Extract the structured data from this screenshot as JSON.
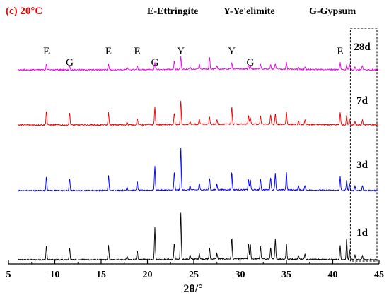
{
  "chart_data": {
    "type": "line",
    "panel_label": "(c) 20°C",
    "legend_items": [
      {
        "abbr": "E",
        "text": "E-Ettringite"
      },
      {
        "abbr": "Y",
        "text": "Y-Ye'elimite"
      },
      {
        "abbr": "G",
        "text": "G-Gypsum"
      }
    ],
    "xlabel": "2θ/°",
    "ylabel": "",
    "xlim": [
      5,
      45
    ],
    "xticks": [
      5,
      10,
      15,
      20,
      25,
      30,
      35,
      40,
      45
    ],
    "y_axis_visible": false,
    "grid": false,
    "highlight_box_xrange": [
      41.9,
      45
    ],
    "colors": {
      "1d": "#000000",
      "3d": "#0000ee",
      "7d": "#ee0000",
      "28d": "#ee00ee",
      "panel_label": "#ee0000"
    },
    "series": [
      {
        "name": "1d",
        "peaks": [
          {
            "x": 9.1,
            "h": 20
          },
          {
            "x": 11.6,
            "h": 17
          },
          {
            "x": 15.8,
            "h": 20
          },
          {
            "x": 17.8,
            "h": 5
          },
          {
            "x": 18.9,
            "h": 12
          },
          {
            "x": 20.8,
            "h": 45
          },
          {
            "x": 22.9,
            "h": 23
          },
          {
            "x": 23.6,
            "h": 65
          },
          {
            "x": 24.6,
            "h": 6
          },
          {
            "x": 25.6,
            "h": 8
          },
          {
            "x": 26.7,
            "h": 16
          },
          {
            "x": 27.5,
            "h": 8
          },
          {
            "x": 29.1,
            "h": 30
          },
          {
            "x": 30.9,
            "h": 22
          },
          {
            "x": 31.1,
            "h": 22
          },
          {
            "x": 32.2,
            "h": 18
          },
          {
            "x": 33.3,
            "h": 16
          },
          {
            "x": 33.8,
            "h": 28
          },
          {
            "x": 35.0,
            "h": 22
          },
          {
            "x": 36.3,
            "h": 6
          },
          {
            "x": 37.0,
            "h": 8
          },
          {
            "x": 40.8,
            "h": 20
          },
          {
            "x": 41.5,
            "h": 30
          },
          {
            "x": 41.8,
            "h": 14
          },
          {
            "x": 42.4,
            "h": 7
          },
          {
            "x": 43.2,
            "h": 6
          }
        ]
      },
      {
        "name": "3d",
        "peaks": [
          {
            "x": 9.1,
            "h": 20
          },
          {
            "x": 11.6,
            "h": 17
          },
          {
            "x": 15.8,
            "h": 22
          },
          {
            "x": 17.8,
            "h": 5
          },
          {
            "x": 18.9,
            "h": 13
          },
          {
            "x": 20.8,
            "h": 35
          },
          {
            "x": 22.9,
            "h": 26
          },
          {
            "x": 23.6,
            "h": 60
          },
          {
            "x": 24.6,
            "h": 6
          },
          {
            "x": 25.6,
            "h": 9
          },
          {
            "x": 26.7,
            "h": 17
          },
          {
            "x": 27.5,
            "h": 8
          },
          {
            "x": 29.1,
            "h": 25
          },
          {
            "x": 30.9,
            "h": 15
          },
          {
            "x": 31.1,
            "h": 15
          },
          {
            "x": 32.2,
            "h": 16
          },
          {
            "x": 33.3,
            "h": 18
          },
          {
            "x": 33.8,
            "h": 24
          },
          {
            "x": 35.0,
            "h": 25
          },
          {
            "x": 36.3,
            "h": 6
          },
          {
            "x": 37.0,
            "h": 7
          },
          {
            "x": 40.8,
            "h": 20
          },
          {
            "x": 41.5,
            "h": 15
          },
          {
            "x": 41.8,
            "h": 10
          },
          {
            "x": 42.4,
            "h": 6
          },
          {
            "x": 43.2,
            "h": 7
          }
        ]
      },
      {
        "name": "7d",
        "peaks": [
          {
            "x": 9.1,
            "h": 20
          },
          {
            "x": 11.6,
            "h": 17
          },
          {
            "x": 15.8,
            "h": 18
          },
          {
            "x": 17.8,
            "h": 4
          },
          {
            "x": 18.9,
            "h": 9
          },
          {
            "x": 20.8,
            "h": 25
          },
          {
            "x": 22.9,
            "h": 16
          },
          {
            "x": 23.6,
            "h": 34
          },
          {
            "x": 24.6,
            "h": 4
          },
          {
            "x": 25.6,
            "h": 7
          },
          {
            "x": 26.7,
            "h": 10
          },
          {
            "x": 27.5,
            "h": 6
          },
          {
            "x": 29.1,
            "h": 25
          },
          {
            "x": 30.9,
            "h": 12
          },
          {
            "x": 31.1,
            "h": 10
          },
          {
            "x": 32.2,
            "h": 12
          },
          {
            "x": 33.3,
            "h": 13
          },
          {
            "x": 33.8,
            "h": 15
          },
          {
            "x": 35.0,
            "h": 18
          },
          {
            "x": 36.3,
            "h": 5
          },
          {
            "x": 37.0,
            "h": 6
          },
          {
            "x": 40.8,
            "h": 18
          },
          {
            "x": 41.5,
            "h": 14
          },
          {
            "x": 41.8,
            "h": 8
          },
          {
            "x": 42.4,
            "h": 5
          },
          {
            "x": 43.2,
            "h": 7
          }
        ]
      },
      {
        "name": "28d",
        "peaks": [
          {
            "x": 9.1,
            "h": 9
          },
          {
            "x": 11.6,
            "h": 6
          },
          {
            "x": 15.8,
            "h": 8
          },
          {
            "x": 17.8,
            "h": 3
          },
          {
            "x": 18.9,
            "h": 5
          },
          {
            "x": 20.8,
            "h": 10
          },
          {
            "x": 22.9,
            "h": 12
          },
          {
            "x": 23.6,
            "h": 18
          },
          {
            "x": 24.6,
            "h": 3
          },
          {
            "x": 25.6,
            "h": 7
          },
          {
            "x": 26.7,
            "h": 18
          },
          {
            "x": 27.5,
            "h": 4
          },
          {
            "x": 29.1,
            "h": 10
          },
          {
            "x": 30.9,
            "h": 5
          },
          {
            "x": 31.1,
            "h": 5
          },
          {
            "x": 32.2,
            "h": 7
          },
          {
            "x": 33.3,
            "h": 6
          },
          {
            "x": 33.8,
            "h": 8
          },
          {
            "x": 35.0,
            "h": 10
          },
          {
            "x": 36.3,
            "h": 3
          },
          {
            "x": 37.0,
            "h": 4
          },
          {
            "x": 40.8,
            "h": 10
          },
          {
            "x": 41.5,
            "h": 6
          },
          {
            "x": 41.8,
            "h": 8
          },
          {
            "x": 42.4,
            "h": 4
          },
          {
            "x": 43.2,
            "h": 6
          }
        ]
      }
    ],
    "peak_annotations": [
      {
        "label": "E",
        "x": 9.1
      },
      {
        "label": "G",
        "x": 11.6
      },
      {
        "label": "E",
        "x": 15.8
      },
      {
        "label": "E",
        "x": 18.9
      },
      {
        "label": "G",
        "x": 20.8
      },
      {
        "label": "Y",
        "x": 23.6
      },
      {
        "label": "Y",
        "x": 29.1
      },
      {
        "label": "G",
        "x": 31.1
      },
      {
        "label": "E",
        "x": 40.8
      }
    ]
  }
}
